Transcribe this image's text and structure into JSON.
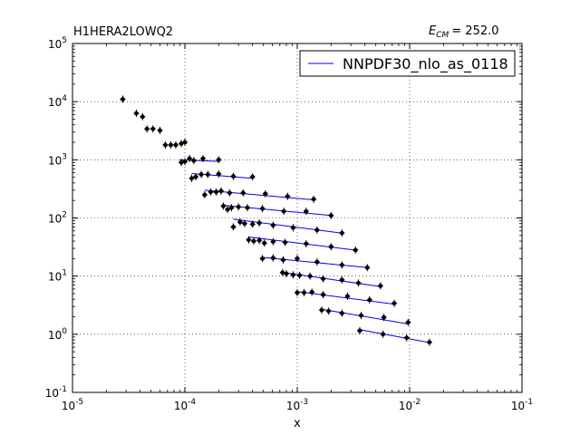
{
  "chart_data": {
    "type": "scatter",
    "title_left": "H1HERA2LOWQ2",
    "title_right_label": "E",
    "title_right_sub": "CM",
    "title_right_value": "= 252.0",
    "xlabel": "x",
    "ylabel": "",
    "xscale": "log",
    "yscale": "log",
    "xlim": [
      1e-05,
      0.1
    ],
    "ylim": [
      0.1,
      100000
    ],
    "x_ticks": [
      {
        "base": "10",
        "exp": "-5"
      },
      {
        "base": "10",
        "exp": "-4"
      },
      {
        "base": "10",
        "exp": "-3"
      },
      {
        "base": "10",
        "exp": "-2"
      },
      {
        "base": "10",
        "exp": "-1"
      }
    ],
    "y_ticks": [
      {
        "base": "10",
        "exp": "-1"
      },
      {
        "base": "10",
        "exp": "0"
      },
      {
        "base": "10",
        "exp": "1"
      },
      {
        "base": "10",
        "exp": "2"
      },
      {
        "base": "10",
        "exp": "3"
      },
      {
        "base": "10",
        "exp": "4"
      },
      {
        "base": "10",
        "exp": "5"
      }
    ],
    "grid": true,
    "legend": {
      "position": "top-right",
      "entries": [
        "NNPDF30_nlo_as_0118"
      ]
    },
    "line_color": "#0000ff",
    "marker_color": "#000000",
    "series": [
      {
        "points": [
          [
            2.8e-05,
            11000
          ]
        ],
        "line": []
      },
      {
        "points": [
          [
            3.7e-05,
            6300
          ],
          [
            4.2e-05,
            5500
          ]
        ],
        "line": []
      },
      {
        "points": [
          [
            4.6e-05,
            3400
          ],
          [
            5.2e-05,
            3400
          ],
          [
            6e-05,
            3200
          ]
        ],
        "line": []
      },
      {
        "points": [
          [
            6.7e-05,
            1800
          ],
          [
            7.5e-05,
            1800
          ],
          [
            8.3e-05,
            1800
          ],
          [
            9.3e-05,
            1900
          ],
          [
            0.0001,
            2000
          ]
        ],
        "line": []
      },
      {
        "points": [
          [
            9.3e-05,
            900
          ],
          [
            0.0001,
            930
          ],
          [
            0.00011,
            1050
          ],
          [
            0.00012,
            970
          ],
          [
            0.000145,
            1050
          ],
          [
            0.0002,
            1000
          ]
        ],
        "line": [
          [
            9e-05,
            1000
          ],
          [
            0.0002,
            940
          ]
        ]
      },
      {
        "points": [
          [
            0.000115,
            480
          ],
          [
            0.000125,
            510
          ],
          [
            0.00014,
            560
          ],
          [
            0.00016,
            560
          ],
          [
            0.0002,
            570
          ],
          [
            0.00027,
            520
          ],
          [
            0.0004,
            510
          ]
        ],
        "line": [
          [
            0.000115,
            580
          ],
          [
            0.0004,
            480
          ]
        ]
      },
      {
        "points": [
          [
            0.00015,
            250
          ],
          [
            0.00017,
            280
          ],
          [
            0.00019,
            280
          ],
          [
            0.00021,
            290
          ],
          [
            0.00025,
            270
          ],
          [
            0.00033,
            270
          ],
          [
            0.00052,
            260
          ],
          [
            0.00082,
            235
          ],
          [
            0.0014,
            210
          ]
        ],
        "line": [
          [
            0.00015,
            300
          ],
          [
            0.0014,
            205
          ]
        ]
      },
      {
        "points": [
          [
            0.00022,
            160
          ],
          [
            0.00024,
            140
          ],
          [
            0.00026,
            150
          ],
          [
            0.0003,
            155
          ],
          [
            0.00036,
            150
          ],
          [
            0.00049,
            145
          ],
          [
            0.00076,
            130
          ],
          [
            0.0012,
            130
          ],
          [
            0.002,
            110
          ]
        ],
        "line": [
          [
            0.00022,
            165
          ],
          [
            0.002,
            110
          ]
        ]
      },
      {
        "points": [
          [
            0.00027,
            70
          ],
          [
            0.00031,
            85
          ],
          [
            0.00034,
            80
          ],
          [
            0.0004,
            78
          ],
          [
            0.00046,
            82
          ],
          [
            0.00061,
            75
          ],
          [
            0.00092,
            68
          ],
          [
            0.0015,
            62
          ],
          [
            0.0025,
            55
          ]
        ],
        "line": [
          [
            0.00027,
            95
          ],
          [
            0.0025,
            55
          ]
        ]
      },
      {
        "points": [
          [
            0.00037,
            42
          ],
          [
            0.00041,
            40
          ],
          [
            0.00046,
            41
          ],
          [
            0.00051,
            37
          ],
          [
            0.00061,
            39
          ],
          [
            0.00078,
            38
          ],
          [
            0.0012,
            36
          ],
          [
            0.002,
            32
          ],
          [
            0.0033,
            28
          ]
        ],
        "line": [
          [
            0.00037,
            47
          ],
          [
            0.0033,
            28
          ]
        ]
      },
      {
        "points": [
          [
            0.00049,
            20
          ],
          [
            0.00061,
            20.5
          ],
          [
            0.00075,
            19
          ],
          [
            0.001,
            20
          ],
          [
            0.0015,
            17.5
          ],
          [
            0.0025,
            15.5
          ],
          [
            0.0042,
            14
          ]
        ],
        "line": [
          [
            0.00049,
            21
          ],
          [
            0.0042,
            14
          ]
        ]
      },
      {
        "points": [
          [
            0.00074,
            11.5
          ],
          [
            0.0008,
            11
          ],
          [
            0.00092,
            10.5
          ],
          [
            0.00105,
            10.3
          ],
          [
            0.0013,
            10
          ],
          [
            0.0017,
            9
          ],
          [
            0.0025,
            8.6
          ],
          [
            0.0035,
            7.6
          ],
          [
            0.0055,
            6.8
          ]
        ],
        "line": [
          [
            0.00074,
            11.6
          ],
          [
            0.0055,
            6.6
          ]
        ]
      },
      {
        "points": [
          [
            0.001,
            5.2
          ],
          [
            0.00115,
            5.2
          ],
          [
            0.00135,
            5.3
          ],
          [
            0.0017,
            4.8
          ],
          [
            0.0028,
            4.5
          ],
          [
            0.0044,
            3.9
          ],
          [
            0.0073,
            3.4
          ]
        ],
        "line": [
          [
            0.001,
            5.4
          ],
          [
            0.0073,
            3.3
          ]
        ]
      },
      {
        "points": [
          [
            0.00165,
            2.6
          ],
          [
            0.0019,
            2.5
          ],
          [
            0.0025,
            2.3
          ],
          [
            0.0037,
            2.1
          ],
          [
            0.0059,
            1.95
          ],
          [
            0.0097,
            1.6
          ]
        ],
        "line": [
          [
            0.00165,
            2.7
          ],
          [
            0.0097,
            1.5
          ]
        ]
      },
      {
        "points": [
          [
            0.0036,
            1.15
          ],
          [
            0.0058,
            1.0
          ],
          [
            0.0094,
            0.87
          ],
          [
            0.015,
            0.73
          ]
        ],
        "line": [
          [
            0.0036,
            1.2
          ],
          [
            0.015,
            0.72
          ]
        ]
      }
    ]
  }
}
